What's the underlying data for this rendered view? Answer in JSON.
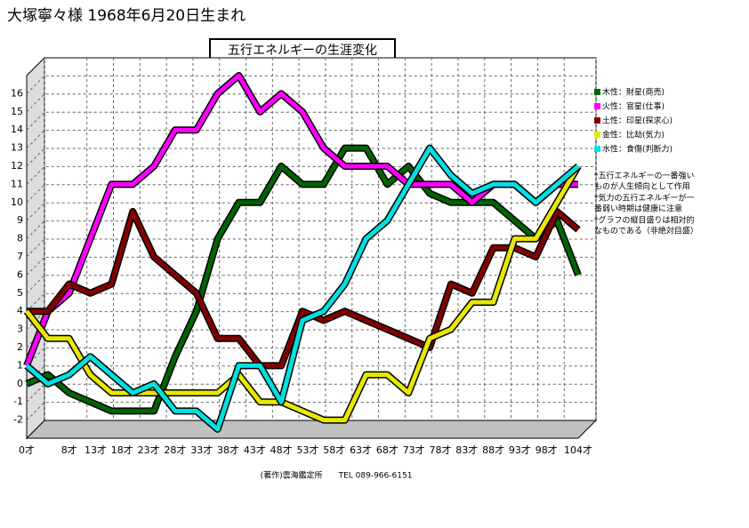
{
  "chart_data": {
    "type": "line",
    "header": "大塚寧々様 1968年6月20日生まれ",
    "title": "五行エネルギーの生涯変化",
    "footer": "(著作)雲海鑑定所　　TEL 089-966-6151",
    "x": [
      0,
      4,
      8,
      12,
      16,
      20,
      24,
      28,
      32,
      36,
      40,
      44,
      48,
      52,
      56,
      60,
      64,
      68,
      72,
      76,
      80,
      84,
      88,
      92,
      96,
      100,
      104
    ],
    "xlim": [
      0,
      104
    ],
    "xticks": [
      {
        "value": 0,
        "label": "0才"
      },
      {
        "value": 8,
        "label": "8才"
      },
      {
        "value": 13,
        "label": "13才"
      },
      {
        "value": 18,
        "label": "18才"
      },
      {
        "value": 23,
        "label": "23才"
      },
      {
        "value": 28,
        "label": "28才"
      },
      {
        "value": 33,
        "label": "33才"
      },
      {
        "value": 38,
        "label": "38才"
      },
      {
        "value": 43,
        "label": "43才"
      },
      {
        "value": 48,
        "label": "48才"
      },
      {
        "value": 53,
        "label": "53才"
      },
      {
        "value": 58,
        "label": "58才"
      },
      {
        "value": 63,
        "label": "63才"
      },
      {
        "value": 68,
        "label": "68才"
      },
      {
        "value": 73,
        "label": "73才"
      },
      {
        "value": 78,
        "label": "78才"
      },
      {
        "value": 83,
        "label": "83才"
      },
      {
        "value": 88,
        "label": "88才"
      },
      {
        "value": 93,
        "label": "93才"
      },
      {
        "value": 98,
        "label": "98才"
      },
      {
        "value": 104,
        "label": "104才"
      }
    ],
    "ylim": [
      -3,
      17
    ],
    "yticks": [
      -2,
      -1,
      0,
      1,
      2,
      3,
      4,
      5,
      6,
      7,
      8,
      9,
      10,
      11,
      12,
      13,
      14,
      15,
      16
    ],
    "grid": true,
    "series": [
      {
        "name": "木性：財星(商売)",
        "color": "#006400",
        "values": [
          0,
          0.5,
          -0.5,
          -1,
          -1.5,
          -1.5,
          -1.5,
          1.5,
          4,
          8,
          10,
          10,
          12,
          11,
          11,
          13,
          13,
          11,
          12,
          10.5,
          10,
          10,
          10,
          9,
          8,
          9,
          6
        ]
      },
      {
        "name": "火性：官星(仕事)",
        "color": "#ff00ff",
        "values": [
          1,
          4,
          5,
          8,
          11,
          11,
          12,
          14,
          14,
          16,
          17,
          15,
          16,
          15,
          13,
          12,
          12,
          12,
          11,
          11,
          11,
          10,
          11,
          11,
          10,
          11,
          11
        ]
      },
      {
        "name": "土性：印星(探求心)",
        "color": "#800000",
        "values": [
          4,
          4,
          5.5,
          5,
          5.5,
          9.5,
          7,
          6,
          5,
          2.5,
          2.5,
          1,
          1,
          4,
          3.5,
          4,
          3.5,
          3,
          2.5,
          2,
          5.5,
          5,
          7.5,
          7.5,
          7,
          9.5,
          8.5
        ]
      },
      {
        "name": "金性：比劫(気力)",
        "color": "#e8e800",
        "values": [
          4,
          2.5,
          2.5,
          0.5,
          -0.5,
          -0.5,
          -0.5,
          -0.5,
          -0.5,
          -0.5,
          0.5,
          -1,
          -1,
          -1.5,
          -2,
          -2,
          0.5,
          0.5,
          -0.5,
          2.5,
          3,
          4.5,
          4.5,
          8,
          8,
          10,
          12
        ]
      },
      {
        "name": "水性：食傷(判断力)",
        "color": "#00e0e0",
        "values": [
          1,
          0,
          0.5,
          1.5,
          0.5,
          -0.5,
          0,
          -1.5,
          -1.5,
          -2.5,
          1,
          1,
          -1,
          3.5,
          4,
          5.5,
          8,
          9,
          11,
          13,
          11.5,
          10.5,
          11,
          11,
          10,
          11,
          12
        ]
      }
    ],
    "annotations": [
      [
        "*五行エネルギーの一番強い",
        "ものが人生傾向として作用"
      ],
      [
        "*気力の五行エネルギーが一",
        "番弱い時期は健康に注意"
      ],
      [
        "*グラフの縦目盛りは相対的",
        "なものである（非絶対目盛）"
      ]
    ]
  }
}
